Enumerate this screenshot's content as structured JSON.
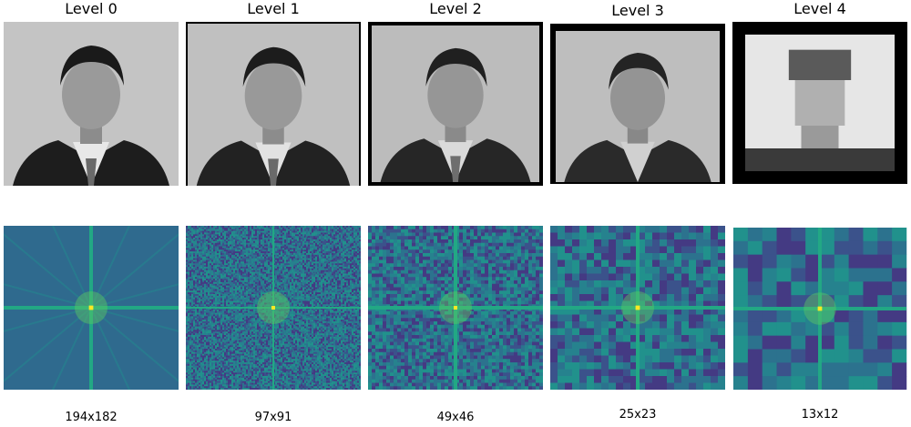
{
  "levels": [
    {
      "title": "Level 0",
      "size": "194x182",
      "grid": 1
    },
    {
      "title": "Level 1",
      "size": "97x91",
      "grid": 96
    },
    {
      "title": "Level 2",
      "size": "49x46",
      "grid": 48
    },
    {
      "title": "Level 3",
      "size": "25x23",
      "grid": 24
    },
    {
      "title": "Level 4",
      "size": "13x12",
      "grid": 12
    }
  ],
  "colors": {
    "spectrum_dark": "#443a83",
    "spectrum_mid": "#26828e",
    "spectrum_bright": "#5ec962",
    "spectrum_peak": "#fde725",
    "photo_bg": "#bdbdbd"
  }
}
